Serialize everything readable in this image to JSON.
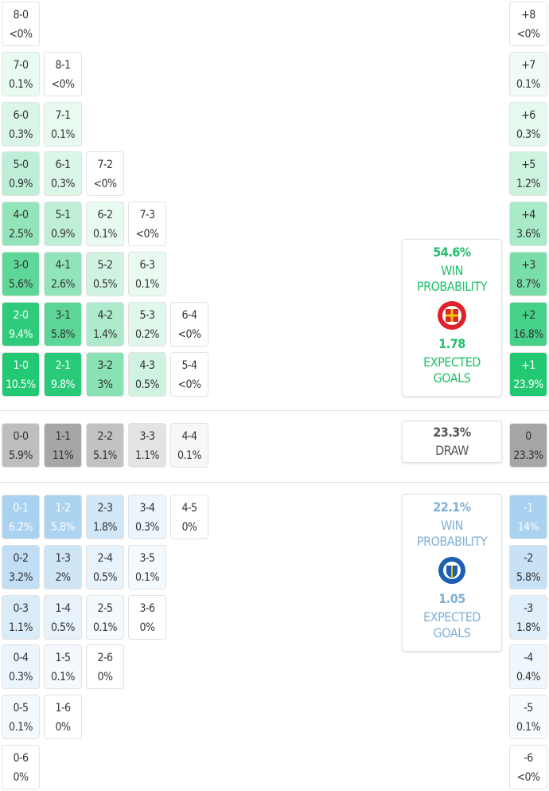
{
  "home": {
    "color": "#22c872",
    "text_color": "#1fc06a",
    "rows": [
      [
        {
          "score": "8-0",
          "prob": "<0%"
        }
      ],
      [
        {
          "score": "7-0",
          "prob": "0.1%"
        },
        {
          "score": "8-1",
          "prob": "<0%"
        }
      ],
      [
        {
          "score": "6-0",
          "prob": "0.3%"
        },
        {
          "score": "7-1",
          "prob": "0.1%"
        }
      ],
      [
        {
          "score": "5-0",
          "prob": "0.9%"
        },
        {
          "score": "6-1",
          "prob": "0.3%"
        },
        {
          "score": "7-2",
          "prob": "<0%"
        }
      ],
      [
        {
          "score": "4-0",
          "prob": "2.5%"
        },
        {
          "score": "5-1",
          "prob": "0.9%"
        },
        {
          "score": "6-2",
          "prob": "0.1%"
        },
        {
          "score": "7-3",
          "prob": "<0%"
        }
      ],
      [
        {
          "score": "3-0",
          "prob": "5.6%"
        },
        {
          "score": "4-1",
          "prob": "2.6%"
        },
        {
          "score": "5-2",
          "prob": "0.5%"
        },
        {
          "score": "6-3",
          "prob": "0.1%"
        }
      ],
      [
        {
          "score": "2-0",
          "prob": "9.4%"
        },
        {
          "score": "3-1",
          "prob": "5.8%"
        },
        {
          "score": "4-2",
          "prob": "1.4%"
        },
        {
          "score": "5-3",
          "prob": "0.2%"
        },
        {
          "score": "6-4",
          "prob": "<0%"
        }
      ],
      [
        {
          "score": "1-0",
          "prob": "10.5%"
        },
        {
          "score": "2-1",
          "prob": "9.8%"
        },
        {
          "score": "3-2",
          "prob": "3%"
        },
        {
          "score": "4-3",
          "prob": "0.5%"
        },
        {
          "score": "5-4",
          "prob": "<0%"
        }
      ]
    ],
    "margins": [
      {
        "score": "+8",
        "prob": "<0%"
      },
      {
        "score": "+7",
        "prob": "0.1%"
      },
      {
        "score": "+6",
        "prob": "0.3%"
      },
      {
        "score": "+5",
        "prob": "1.2%"
      },
      {
        "score": "+4",
        "prob": "3.6%"
      },
      {
        "score": "+3",
        "prob": "8.7%"
      },
      {
        "score": "+2",
        "prob": "16.8%"
      },
      {
        "score": "+1",
        "prob": "23.9%"
      }
    ],
    "summary": {
      "probability": "54.6%",
      "probability_label": "WIN PROBABILITY",
      "expected_goals": "1.78",
      "expected_goals_label": "EXPECTED GOALS"
    }
  },
  "draw": {
    "color": "#a6a6a6",
    "text_color": "#555555",
    "rows": [
      [
        {
          "score": "0-0",
          "prob": "5.9%"
        },
        {
          "score": "1-1",
          "prob": "11%"
        },
        {
          "score": "2-2",
          "prob": "5.1%"
        },
        {
          "score": "3-3",
          "prob": "1.1%"
        },
        {
          "score": "4-4",
          "prob": "0.1%"
        }
      ]
    ],
    "margins": [
      {
        "score": "0",
        "prob": "23.3%"
      }
    ],
    "summary": {
      "probability": "23.3%",
      "probability_label": "DRAW"
    }
  },
  "away": {
    "color": "#a9d1f0",
    "text_color": "#7fb0d8",
    "rows": [
      [
        {
          "score": "0-1",
          "prob": "6.2%"
        },
        {
          "score": "1-2",
          "prob": "5.8%"
        },
        {
          "score": "2-3",
          "prob": "1.8%"
        },
        {
          "score": "3-4",
          "prob": "0.3%"
        },
        {
          "score": "4-5",
          "prob": "0%"
        }
      ],
      [
        {
          "score": "0-2",
          "prob": "3.2%"
        },
        {
          "score": "1-3",
          "prob": "2%"
        },
        {
          "score": "2-4",
          "prob": "0.5%"
        },
        {
          "score": "3-5",
          "prob": "0.1%"
        }
      ],
      [
        {
          "score": "0-3",
          "prob": "1.1%"
        },
        {
          "score": "1-4",
          "prob": "0.5%"
        },
        {
          "score": "2-5",
          "prob": "0.1%"
        },
        {
          "score": "3-6",
          "prob": "0%"
        }
      ],
      [
        {
          "score": "0-4",
          "prob": "0.3%"
        },
        {
          "score": "1-5",
          "prob": "0.1%"
        },
        {
          "score": "2-6",
          "prob": "0%"
        }
      ],
      [
        {
          "score": "0-5",
          "prob": "0.1%"
        },
        {
          "score": "1-6",
          "prob": "0%"
        }
      ],
      [
        {
          "score": "0-6",
          "prob": "0%"
        }
      ]
    ],
    "margins": [
      {
        "score": "-1",
        "prob": "14%"
      },
      {
        "score": "-2",
        "prob": "5.8%"
      },
      {
        "score": "-3",
        "prob": "1.8%"
      },
      {
        "score": "-4",
        "prob": "0.4%"
      },
      {
        "score": "-5",
        "prob": "0.1%"
      },
      {
        "score": "-6",
        "prob": "<0%"
      }
    ],
    "summary": {
      "probability": "22.1%",
      "probability_label": "WIN PROBABILITY",
      "expected_goals": "1.05",
      "expected_goals_label": "EXPECTED GOALS"
    }
  }
}
